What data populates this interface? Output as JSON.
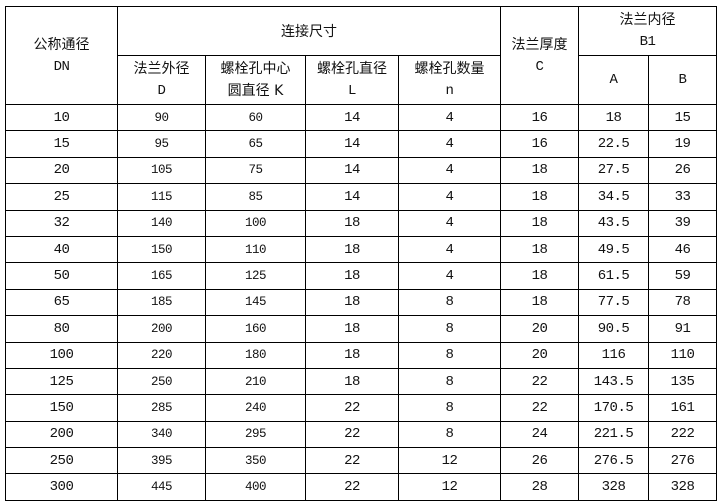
{
  "headers": {
    "dn": {
      "line1": "公称通径",
      "line2": "DN"
    },
    "connection": "连接尺寸",
    "outer_d": {
      "line1": "法兰外径",
      "line2": "D"
    },
    "bolt_circle_k": {
      "line1": "螺栓孔中心",
      "line2": "圆直径 K"
    },
    "bolt_hole_l": {
      "line1": "螺栓孔直径",
      "line2": "L"
    },
    "bolt_count_n": {
      "line1": "螺栓孔数量",
      "line2": "n"
    },
    "thickness_c": {
      "line1": "法兰厚度",
      "line2": "C"
    },
    "inner_b1": {
      "line1": "法兰内径",
      "line2": "B1"
    },
    "a": "A",
    "b": "B"
  },
  "rows": [
    [
      "10",
      "90",
      "60",
      "14",
      "4",
      "16",
      "18",
      "15"
    ],
    [
      "15",
      "95",
      "65",
      "14",
      "4",
      "16",
      "22.5",
      "19"
    ],
    [
      "20",
      "105",
      "75",
      "14",
      "4",
      "18",
      "27.5",
      "26"
    ],
    [
      "25",
      "115",
      "85",
      "14",
      "4",
      "18",
      "34.5",
      "33"
    ],
    [
      "32",
      "140",
      "100",
      "18",
      "4",
      "18",
      "43.5",
      "39"
    ],
    [
      "40",
      "150",
      "110",
      "18",
      "4",
      "18",
      "49.5",
      "46"
    ],
    [
      "50",
      "165",
      "125",
      "18",
      "4",
      "18",
      "61.5",
      "59"
    ],
    [
      "65",
      "185",
      "145",
      "18",
      "8",
      "18",
      "77.5",
      "78"
    ],
    [
      "80",
      "200",
      "160",
      "18",
      "8",
      "20",
      "90.5",
      "91"
    ],
    [
      "100",
      "220",
      "180",
      "18",
      "8",
      "20",
      "116",
      "110"
    ],
    [
      "125",
      "250",
      "210",
      "18",
      "8",
      "22",
      "143.5",
      "135"
    ],
    [
      "150",
      "285",
      "240",
      "22",
      "8",
      "22",
      "170.5",
      "161"
    ],
    [
      "200",
      "340",
      "295",
      "22",
      "8",
      "24",
      "221.5",
      "222"
    ],
    [
      "250",
      "395",
      "350",
      "22",
      "12",
      "26",
      "276.5",
      "276"
    ],
    [
      "300",
      "445",
      "400",
      "22",
      "12",
      "28",
      "328",
      "328"
    ]
  ]
}
